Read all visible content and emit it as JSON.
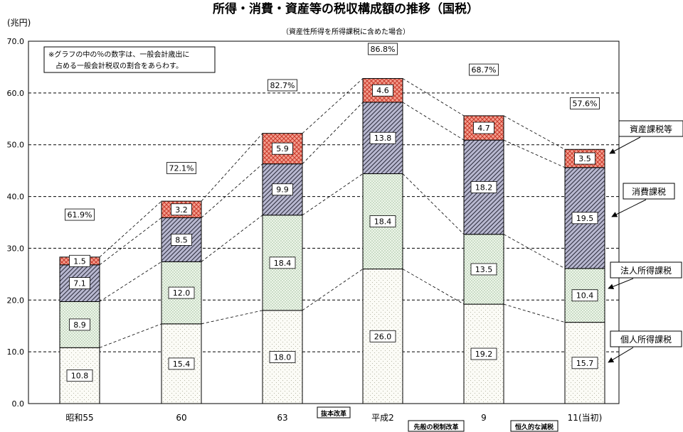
{
  "chart_data": {
    "type": "bar",
    "title": "所得・消費・資産等の税収構成額の推移（国税）",
    "subtitle": "（資産性所得を所得課税に含めた場合）",
    "unit_label": "(兆円)",
    "note_lines": [
      "※グラフの中の％の数字は、一般会計歳出に",
      "占める一般会計税収の割合をあらわす。"
    ],
    "categories": [
      "昭和55",
      "60",
      "63",
      "平成2",
      "9",
      "11(当初)"
    ],
    "ylim": [
      0,
      70
    ],
    "yticks": [
      "0.0",
      "10.0",
      "20.0",
      "30.0",
      "40.0",
      "50.0",
      "60.0",
      "70.0"
    ],
    "grid": true,
    "series": [
      {
        "name": "個人所得課税",
        "values": [
          10.8,
          15.4,
          18.0,
          26.0,
          19.2,
          15.7
        ],
        "labels": [
          "10.8",
          "15.4",
          "18.0",
          "26.0",
          "19.2",
          "15.7"
        ]
      },
      {
        "name": "法人所得課税",
        "values": [
          8.9,
          12.0,
          18.4,
          18.4,
          13.5,
          10.4
        ],
        "labels": [
          "8.9",
          "12.0",
          "18.4",
          "18.4",
          "13.5",
          "10.4"
        ]
      },
      {
        "name": "消費課税",
        "values": [
          7.1,
          8.5,
          9.9,
          13.8,
          18.2,
          19.5
        ],
        "labels": [
          "7.1",
          "8.5",
          "9.9",
          "13.8",
          "18.2",
          "19.5"
        ]
      },
      {
        "name": "資産課税等",
        "values": [
          1.5,
          3.2,
          5.9,
          4.6,
          4.7,
          3.5
        ],
        "labels": [
          "1.5",
          "3.2",
          "5.9",
          "4.6",
          "4.7",
          "3.5"
        ]
      }
    ],
    "percent_labels": [
      "61.9%",
      "72.1%",
      "82.7%",
      "86.8%",
      "68.7%",
      "57.6%"
    ],
    "percent_y": [
      36.5,
      45.5,
      61.5,
      68.5,
      64.5,
      58.0
    ],
    "legend_order": [
      "資産課税等",
      "消費課税",
      "法人所得課税",
      "個人所得課税"
    ],
    "annotations": [
      "抜本改革",
      "先般の税制改革",
      "恒久的な減税"
    ],
    "colors": {
      "individual": "#fbfbf6",
      "corporate": "#eef6ea",
      "consumption": "#b8b8d0",
      "asset": "#f4a090",
      "asset_dark": "#c8382a",
      "consumption_dark": "#303040"
    }
  }
}
